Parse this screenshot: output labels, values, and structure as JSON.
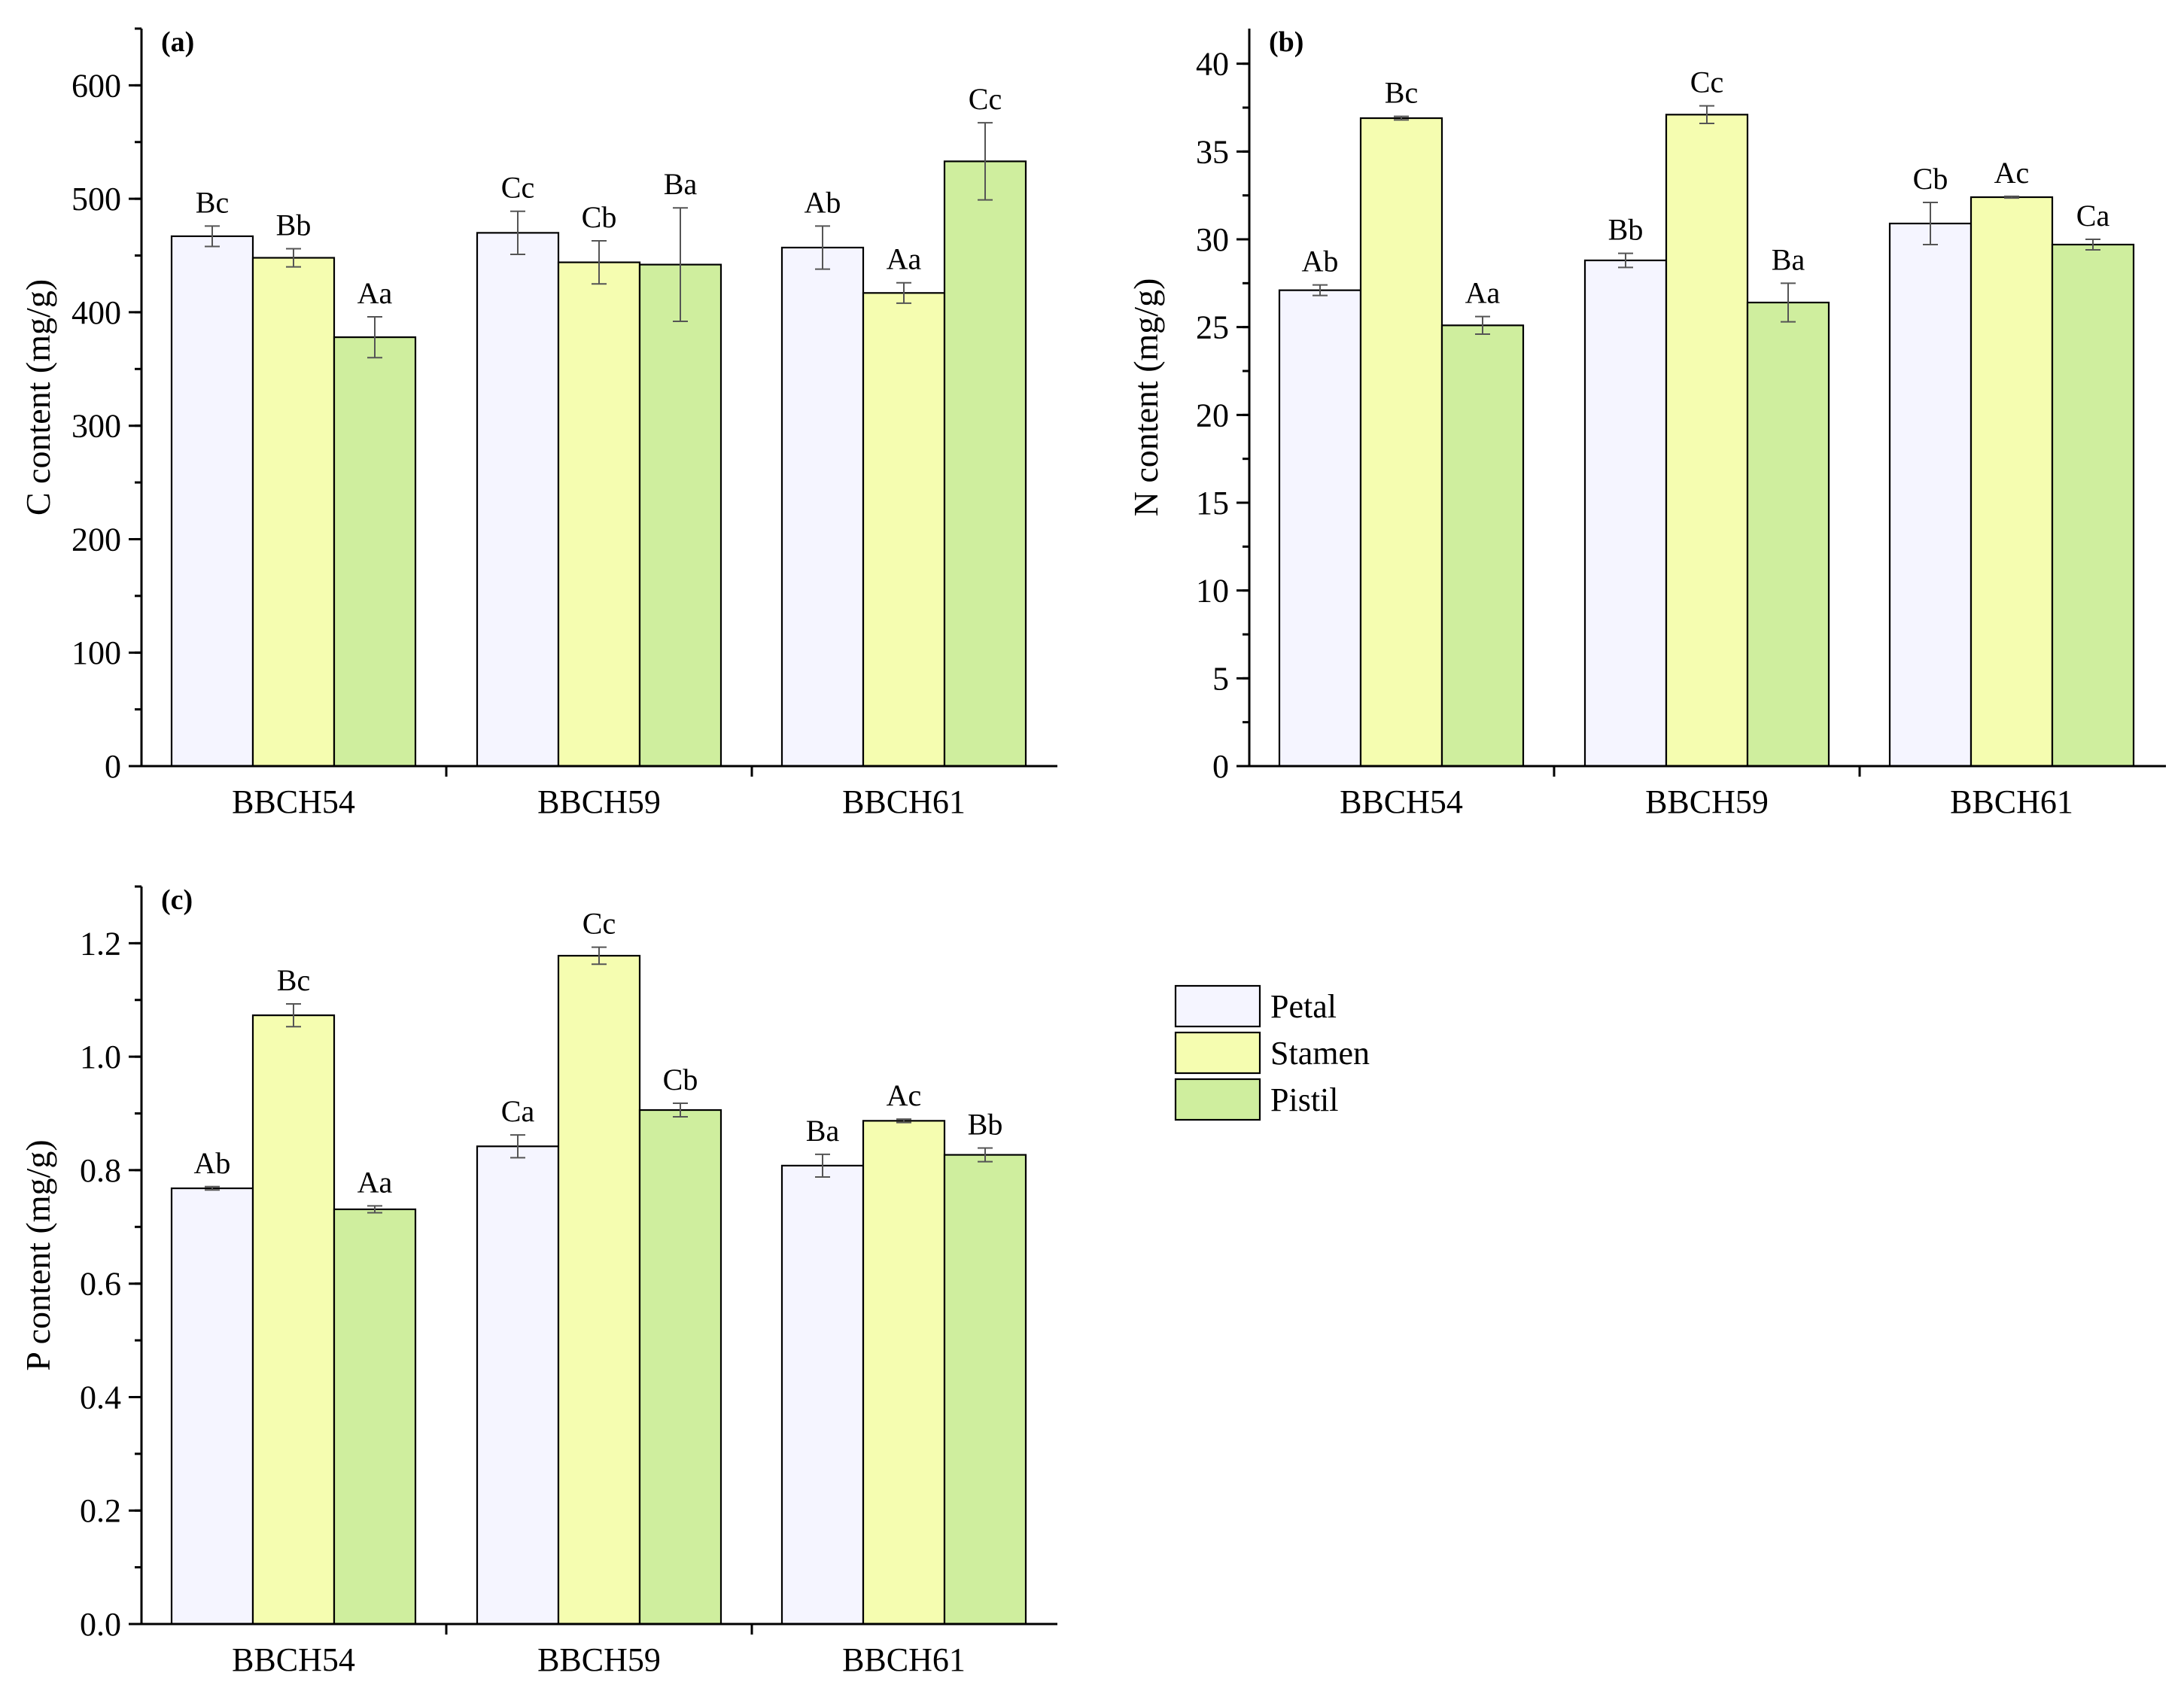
{
  "legend": {
    "items": [
      {
        "name": "Petal",
        "color": "#f5f5ff"
      },
      {
        "name": "Stamen",
        "color": "#f5fdb0"
      },
      {
        "name": "Pistil",
        "color": "#cfee9e"
      }
    ]
  },
  "chart_data": [
    {
      "type": "bar",
      "tag": "(a)",
      "ylabel": "C content (mg/g)",
      "xlabel": "",
      "ylim": [
        0,
        650
      ],
      "yticks": [
        0,
        100,
        200,
        300,
        400,
        500,
        600
      ],
      "ytick_labels": [
        "0",
        "100",
        "200",
        "300",
        "400",
        "500",
        "600"
      ],
      "minor_step": 50,
      "categories": [
        "BBCH54",
        "BBCH59",
        "BBCH61"
      ],
      "series": [
        {
          "name": "Petal",
          "values": [
            467,
            470,
            457
          ],
          "errors": [
            9,
            19,
            19
          ],
          "letters": [
            "Bc",
            "Cc",
            "Ab"
          ]
        },
        {
          "name": "Stamen",
          "values": [
            448,
            444,
            417
          ],
          "errors": [
            8,
            19,
            9
          ],
          "letters": [
            "Bb",
            "Cb",
            "Aa"
          ]
        },
        {
          "name": "Pistil",
          "values": [
            378,
            442,
            533
          ],
          "errors": [
            18,
            50,
            34
          ],
          "letters": [
            "Aa",
            "Ba",
            "Cc"
          ]
        }
      ]
    },
    {
      "type": "bar",
      "tag": "(b)",
      "ylabel": "N content (mg/g)",
      "xlabel": "",
      "ylim": [
        0,
        42
      ],
      "yticks": [
        0,
        5,
        10,
        15,
        20,
        25,
        30,
        35,
        40
      ],
      "ytick_labels": [
        "0",
        "5",
        "10",
        "15",
        "20",
        "25",
        "30",
        "35",
        "40"
      ],
      "minor_step": 2.5,
      "categories": [
        "BBCH54",
        "BBCH59",
        "BBCH61"
      ],
      "series": [
        {
          "name": "Petal",
          "values": [
            27.1,
            28.8,
            30.9
          ],
          "errors": [
            0.3,
            0.4,
            1.2
          ],
          "letters": [
            "Ab",
            "Bb",
            "Cb"
          ]
        },
        {
          "name": "Stamen",
          "values": [
            36.9,
            37.1,
            32.4
          ],
          "errors": [
            0.1,
            0.5,
            0.05
          ],
          "letters": [
            "Bc",
            "Cc",
            "Ac"
          ]
        },
        {
          "name": "Pistil",
          "values": [
            25.1,
            26.4,
            29.7
          ],
          "errors": [
            0.5,
            1.1,
            0.3
          ],
          "letters": [
            "Aa",
            "Ba",
            "Ca"
          ]
        }
      ]
    },
    {
      "type": "bar",
      "tag": "(c)",
      "ylabel": "P content (mg/g)",
      "xlabel": "",
      "ylim": [
        0,
        1.3
      ],
      "yticks": [
        0,
        0.2,
        0.4,
        0.6,
        0.8,
        1.0,
        1.2
      ],
      "ytick_labels": [
        "0.0",
        "0.2",
        "0.4",
        "0.6",
        "0.8",
        "1.0",
        "1.2"
      ],
      "minor_step": 0.1,
      "categories": [
        "BBCH54",
        "BBCH59",
        "BBCH61"
      ],
      "series": [
        {
          "name": "Petal",
          "values": [
            0.768,
            0.842,
            0.808
          ],
          "errors": [
            0.003,
            0.02,
            0.02
          ],
          "letters": [
            "Ab",
            "Ca",
            "Ba"
          ]
        },
        {
          "name": "Stamen",
          "values": [
            1.073,
            1.178,
            0.887
          ],
          "errors": [
            0.02,
            0.015,
            0.003
          ],
          "letters": [
            "Bc",
            "Cc",
            "Ac"
          ]
        },
        {
          "name": "Pistil",
          "values": [
            0.731,
            0.906,
            0.827
          ],
          "errors": [
            0.006,
            0.012,
            0.012
          ],
          "letters": [
            "Aa",
            "Cb",
            "Bb"
          ]
        }
      ]
    }
  ]
}
